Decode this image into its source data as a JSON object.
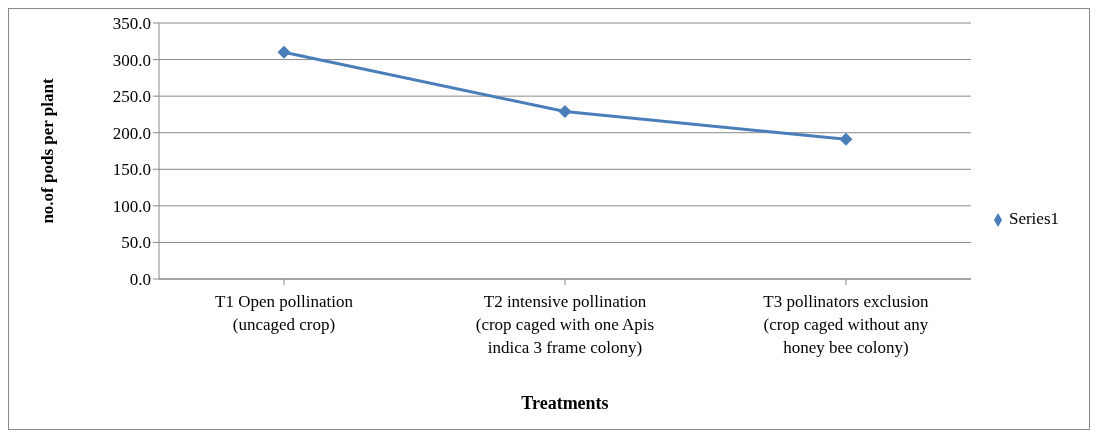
{
  "chart_data": {
    "type": "line",
    "xlabel": "Treatments",
    "ylabel": "no.of pods per plant",
    "categories": [
      "T1 Open pollination (uncaged crop)",
      "T2  intensive pollination (crop caged with one Apis indica 3 frame colony)",
      "T3  pollinators exclusion (crop caged without any honey bee colony)"
    ],
    "series": [
      {
        "name": "Series1",
        "color": "#4a7ebb",
        "values": [
          310,
          229,
          191
        ]
      }
    ],
    "ylim": [
      0,
      350
    ],
    "yticks": [
      {
        "value": 0,
        "label": "0.0"
      },
      {
        "value": 50,
        "label": "50.0"
      },
      {
        "value": 100,
        "label": "100.0"
      },
      {
        "value": 150,
        "label": "150.0"
      },
      {
        "value": 200,
        "label": "200.0"
      },
      {
        "value": 250,
        "label": "250.0"
      },
      {
        "value": 300,
        "label": "300.0"
      },
      {
        "value": 350,
        "label": "350.0"
      }
    ],
    "grid": "y",
    "legend": "right",
    "marker": "diamond",
    "line_style": "solid"
  }
}
